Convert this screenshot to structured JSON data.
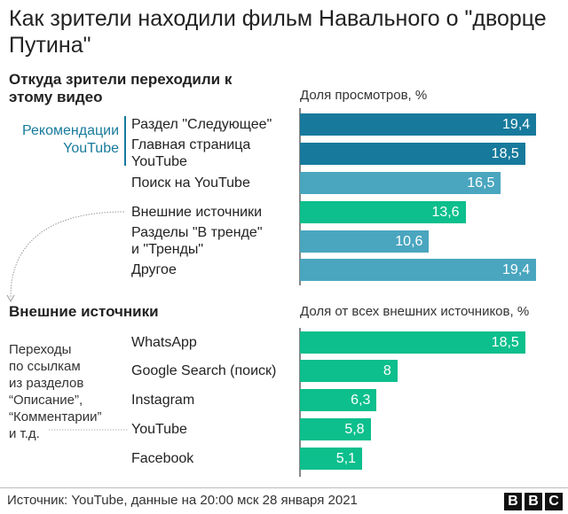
{
  "title": "Как зрители находили фильм Навального о \"дворце Путина\"",
  "footer": {
    "source": "Источник: YouTube, данные на 20:00 мск 28 января 2021",
    "logo": "BBC"
  },
  "colors": {
    "recommendations": "#177a9c",
    "youtube_other": "#4aa6bf",
    "external": "#0cbf8c"
  },
  "annotations": {
    "recommendations_group": [
      "Рекомендации",
      "YouTube"
    ],
    "external_note": [
      "Переходы",
      "по ссылкам",
      "из разделов",
      "“Описание”,",
      "“Комментарии”",
      "и т.д."
    ]
  },
  "chart_data": [
    {
      "type": "bar",
      "orientation": "horizontal",
      "title": "Откуда зрители переходили к этому видео",
      "xlabel": "Доля просмотров, %",
      "xlim": [
        0,
        20
      ],
      "grid": false,
      "categories": [
        [
          "Раздел \"Следующее\""
        ],
        [
          "Главная страница",
          "YouTube"
        ],
        [
          "Поиск на YouTube"
        ],
        [
          "Внешние источники"
        ],
        [
          "Разделы \"В тренде\"",
          "и \"Тренды\""
        ],
        [
          "Другое"
        ]
      ],
      "values": [
        19.4,
        18.5,
        16.5,
        13.6,
        10.6,
        19.4
      ],
      "value_labels": [
        "19,4",
        "18,5",
        "16,5",
        "13,6",
        "10,6",
        "19,4"
      ],
      "bar_colors": [
        "#177a9c",
        "#177a9c",
        "#4aa6bf",
        "#0cbf8c",
        "#4aa6bf",
        "#4aa6bf"
      ]
    },
    {
      "type": "bar",
      "orientation": "horizontal",
      "title": "Внешние источники",
      "xlabel": "Доля от всех внешних источников, %",
      "xlim": [
        0,
        20
      ],
      "grid": false,
      "categories": [
        [
          "WhatsApp"
        ],
        [
          "Google Search (поиск)"
        ],
        [
          "Instagram"
        ],
        [
          "YouTube"
        ],
        [
          "Facebook"
        ]
      ],
      "values": [
        18.5,
        8,
        6.3,
        5.8,
        5.1
      ],
      "value_labels": [
        "18,5",
        "8",
        "6,3",
        "5,8",
        "5,1"
      ],
      "bar_colors": [
        "#0cbf8c",
        "#0cbf8c",
        "#0cbf8c",
        "#0cbf8c",
        "#0cbf8c"
      ]
    }
  ]
}
